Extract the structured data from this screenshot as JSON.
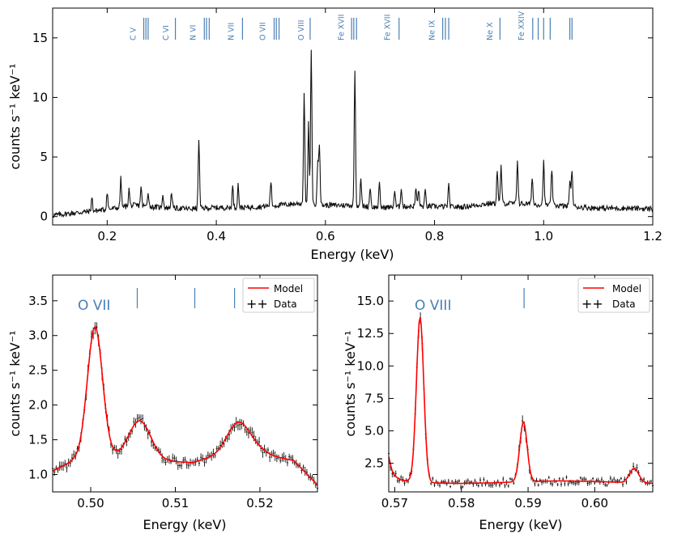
{
  "chart_data": [
    {
      "id": "top",
      "type": "line",
      "xlabel": "Energy (keV)",
      "ylabel": "counts s⁻¹ keV⁻¹",
      "xlim": [
        0.1,
        1.2
      ],
      "ylim": [
        -0.7,
        17.5
      ],
      "xticks": [
        0.2,
        0.4,
        0.6,
        0.8,
        1.0,
        1.2
      ],
      "xtick_labels": [
        "0.2",
        "0.4",
        "0.6",
        "0.8",
        "1.0",
        "1.2"
      ],
      "yticks": [
        0,
        5,
        10,
        15
      ],
      "ytick_labels": [
        "0",
        "5",
        "10",
        "15"
      ],
      "baseline": [
        [
          0.1,
          0.1
        ],
        [
          0.15,
          0.35
        ],
        [
          0.2,
          0.6
        ],
        [
          0.25,
          0.95
        ],
        [
          0.3,
          0.75
        ],
        [
          0.35,
          0.65
        ],
        [
          0.4,
          0.75
        ],
        [
          0.45,
          0.75
        ],
        [
          0.5,
          0.9
        ],
        [
          0.55,
          1.1
        ],
        [
          0.6,
          0.95
        ],
        [
          0.65,
          0.95
        ],
        [
          0.7,
          0.75
        ],
        [
          0.75,
          0.85
        ],
        [
          0.8,
          0.85
        ],
        [
          0.85,
          0.8
        ],
        [
          0.9,
          1.1
        ],
        [
          0.95,
          1.1
        ],
        [
          1.0,
          1.0
        ],
        [
          1.05,
          0.85
        ],
        [
          1.1,
          0.7
        ],
        [
          1.15,
          0.7
        ],
        [
          1.2,
          0.65
        ]
      ],
      "peaks": [
        [
          0.172,
          1.6
        ],
        [
          0.2,
          2.1
        ],
        [
          0.225,
          3.2
        ],
        [
          0.24,
          2.3
        ],
        [
          0.262,
          2.5
        ],
        [
          0.275,
          2.1
        ],
        [
          0.302,
          1.9
        ],
        [
          0.318,
          2.1
        ],
        [
          0.368,
          6.6
        ],
        [
          0.43,
          2.5
        ],
        [
          0.44,
          2.7
        ],
        [
          0.5,
          3.0
        ],
        [
          0.561,
          10.4
        ],
        [
          0.569,
          7.8
        ],
        [
          0.574,
          13.8
        ],
        [
          0.586,
          4.6
        ],
        [
          0.589,
          6.1
        ],
        [
          0.654,
          12.2
        ],
        [
          0.665,
          3.1
        ],
        [
          0.682,
          2.5
        ],
        [
          0.699,
          2.7
        ],
        [
          0.727,
          2.2
        ],
        [
          0.739,
          2.5
        ],
        [
          0.766,
          2.4
        ],
        [
          0.771,
          2.2
        ],
        [
          0.783,
          2.1
        ],
        [
          0.826,
          2.6
        ],
        [
          0.915,
          3.9
        ],
        [
          0.922,
          4.3
        ],
        [
          0.952,
          4.8
        ],
        [
          0.979,
          3.4
        ],
        [
          1.0,
          4.6
        ],
        [
          1.015,
          4.0
        ],
        [
          1.048,
          3.0
        ],
        [
          1.052,
          4.0
        ]
      ],
      "ion_labels": [
        {
          "text": "C V",
          "x": 0.252,
          "lines": [
            0.267,
            0.271,
            0.275
          ]
        },
        {
          "text": "C VI",
          "x": 0.312,
          "lines": [
            0.325
          ]
        },
        {
          "text": "N VI",
          "x": 0.362,
          "lines": [
            0.378,
            0.382,
            0.387
          ]
        },
        {
          "text": "N VII",
          "x": 0.432,
          "lines": [
            0.448
          ]
        },
        {
          "text": "O VII",
          "x": 0.49,
          "lines": [
            0.506,
            0.51,
            0.515
          ]
        },
        {
          "text": "O VIII",
          "x": 0.56,
          "lines": [
            0.572
          ]
        },
        {
          "text": "Fe XVII",
          "x": 0.634,
          "lines": [
            0.648,
            0.652,
            0.657
          ]
        },
        {
          "text": "Fe XVII",
          "x": 0.718,
          "lines": [
            0.735
          ]
        },
        {
          "text": "Ne IX",
          "x": 0.8,
          "lines": [
            0.815,
            0.82,
            0.826
          ]
        },
        {
          "text": "Ne X",
          "x": 0.906,
          "lines": [
            0.92
          ]
        },
        {
          "text": "Fe XXIV",
          "x": 0.964,
          "lines": [
            0.98,
            0.99,
            1.0,
            1.012,
            1.048,
            1.052
          ]
        }
      ]
    },
    {
      "id": "bottom_left",
      "type": "line",
      "xlabel": "Energy (keV)",
      "ylabel": "counts s⁻¹ keV⁻¹",
      "xlim": [
        0.4955,
        0.5268
      ],
      "ylim": [
        0.75,
        3.87
      ],
      "xticks": [
        0.5,
        0.51,
        0.52
      ],
      "xtick_labels": [
        "0.50",
        "0.51",
        "0.52"
      ],
      "yticks": [
        1.0,
        1.5,
        2.0,
        2.5,
        3.0,
        3.5
      ],
      "ytick_labels": [
        "1.0",
        "1.5",
        "2.0",
        "2.5",
        "3.0",
        "3.5"
      ],
      "annotation": "O VII",
      "line_marks": [
        0.5055,
        0.5123,
        0.517
      ],
      "legend": {
        "position": "top-right",
        "entries": [
          {
            "label": "Model",
            "color": "#ff0000"
          },
          {
            "label": "Data",
            "color": "#000000"
          }
        ]
      },
      "baseline": [
        [
          0.4955,
          1.05
        ],
        [
          0.498,
          1.2
        ],
        [
          0.503,
          1.25
        ],
        [
          0.508,
          1.2
        ],
        [
          0.512,
          1.17
        ],
        [
          0.516,
          1.32
        ],
        [
          0.52,
          1.3
        ],
        [
          0.524,
          1.2
        ],
        [
          0.5268,
          0.85
        ]
      ],
      "peaks": [
        [
          0.5005,
          1.9,
          0.0009
        ],
        [
          0.5058,
          0.55,
          0.0013
        ],
        [
          0.5173,
          0.33,
          0.0012
        ],
        [
          0.5185,
          0.15,
          0.0014
        ]
      ],
      "x_range": [
        0.4955,
        0.5268
      ]
    },
    {
      "id": "bottom_right",
      "type": "line",
      "xlabel": "Energy (keV)",
      "ylabel": "counts s⁻¹ keV⁻¹",
      "xlim": [
        0.5691,
        0.6087
      ],
      "ylim": [
        0.3,
        17.0
      ],
      "xticks": [
        0.57,
        0.58,
        0.59,
        0.6
      ],
      "xtick_labels": [
        "0.57",
        "0.58",
        "0.59",
        "0.60"
      ],
      "yticks": [
        2.5,
        5.0,
        7.5,
        10.0,
        12.5,
        15.0
      ],
      "ytick_labels": [
        "2.5",
        "5.0",
        "7.5",
        "10.0",
        "12.5",
        "15.0"
      ],
      "annotation": "O VIII",
      "line_marks": [
        0.5894
      ],
      "legend": {
        "position": "top-right",
        "entries": [
          {
            "label": "Model",
            "color": "#ff0000"
          },
          {
            "label": "Data",
            "color": "#000000"
          }
        ]
      },
      "baseline": [
        [
          0.5691,
          1.8
        ],
        [
          0.571,
          1.2
        ],
        [
          0.575,
          1.0
        ],
        [
          0.58,
          0.95
        ],
        [
          0.585,
          1.0
        ],
        [
          0.59,
          1.1
        ],
        [
          0.595,
          1.15
        ],
        [
          0.6,
          1.1
        ],
        [
          0.6087,
          0.95
        ]
      ],
      "peaks": [
        [
          0.5738,
          12.7,
          0.00055
        ],
        [
          0.5893,
          4.6,
          0.00055
        ],
        [
          0.6059,
          1.1,
          0.0007
        ],
        [
          0.5688,
          1.5,
          0.00045
        ]
      ],
      "x_range": [
        0.5691,
        0.6087
      ]
    }
  ]
}
